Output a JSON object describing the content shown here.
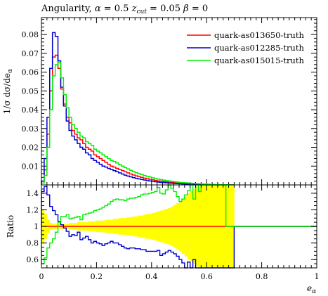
{
  "chart_data": [
    {
      "type": "line",
      "panel": "main",
      "title": "Angularity, α = 0.5 z_cut = 0.05 β = 0",
      "title_parts": {
        "prefix": "Angularity, ",
        "alpha_sym": "α",
        "alpha_eq": " = 0.5 ",
        "z_sym": "z",
        "z_sub": "cut",
        "z_eq": " = 0.05 ",
        "beta_sym": "β",
        "beta_eq": " = 0"
      },
      "ylabel": "1/σ dσ/de_α",
      "ylabel_parts": {
        "main": "1/σ dσ/de",
        "sub": "α"
      },
      "xlim": [
        0,
        1
      ],
      "ylim": [
        0,
        0.089
      ],
      "yticks": [
        "0.01",
        "0.02",
        "0.03",
        "0.04",
        "0.05",
        "0.06",
        "0.07",
        "0.08"
      ],
      "legend_position": "top-right",
      "x": [
        0.0,
        0.01,
        0.02,
        0.03,
        0.04,
        0.05,
        0.06,
        0.07,
        0.08,
        0.09,
        0.1,
        0.11,
        0.12,
        0.13,
        0.14,
        0.15,
        0.16,
        0.17,
        0.18,
        0.19,
        0.2,
        0.21,
        0.22,
        0.23,
        0.24,
        0.25,
        0.26,
        0.27,
        0.28,
        0.29,
        0.3,
        0.31,
        0.32,
        0.33,
        0.34,
        0.35,
        0.36,
        0.37,
        0.38,
        0.39,
        0.4,
        0.41,
        0.42,
        0.43,
        0.44,
        0.45,
        0.46,
        0.47,
        0.48,
        0.49,
        0.5,
        0.51,
        0.52,
        0.53,
        0.54,
        0.55,
        0.56,
        0.57,
        0.58,
        0.59,
        0.6,
        0.61,
        0.62,
        0.63,
        0.64,
        0.65,
        0.66,
        0.67,
        0.68,
        0.69
      ],
      "series": [
        {
          "name": "quark-as013650-truth",
          "color": "#ff0000",
          "values": [
            0.002,
            0.008,
            0.027,
            0.05,
            0.068,
            0.069,
            0.062,
            0.051,
            0.043,
            0.036,
            0.033,
            0.029,
            0.027,
            0.025,
            0.024,
            0.022,
            0.02,
            0.019,
            0.018,
            0.016,
            0.015,
            0.014,
            0.013,
            0.012,
            0.011,
            0.01,
            0.0095,
            0.0088,
            0.0082,
            0.0076,
            0.007,
            0.0064,
            0.0058,
            0.0053,
            0.0048,
            0.0044,
            0.004,
            0.0036,
            0.0033,
            0.003,
            0.0027,
            0.0024,
            0.0021,
            0.002,
            0.0018,
            0.0016,
            0.0014,
            0.0013,
            0.0012,
            0.0011,
            0.001,
            0.0009,
            0.0008,
            0.0007,
            0.0006,
            0.0005,
            0.0004,
            0.0004,
            0.0003,
            0.0003,
            0.0002,
            0.0002,
            0.0001,
            0.0001,
            0.0001,
            0.0001,
            0.0001,
            0.0,
            0.0,
            0.0
          ]
        },
        {
          "name": "quark-as012285-truth",
          "color": "#0000cc",
          "values": [
            0.002,
            0.014,
            0.036,
            0.062,
            0.081,
            0.079,
            0.066,
            0.052,
            0.042,
            0.034,
            0.029,
            0.026,
            0.024,
            0.022,
            0.02,
            0.019,
            0.017,
            0.016,
            0.014,
            0.013,
            0.012,
            0.011,
            0.01,
            0.0095,
            0.0088,
            0.0082,
            0.0076,
            0.007,
            0.0064,
            0.0058,
            0.0052,
            0.0047,
            0.0043,
            0.0039,
            0.0035,
            0.0032,
            0.0029,
            0.0026,
            0.0023,
            0.0021,
            0.0019,
            0.0017,
            0.0015,
            0.0013,
            0.0012,
            0.0011,
            0.001,
            0.0009,
            0.0008,
            0.0007,
            0.0006,
            0.0005,
            0.0004,
            0.0004,
            0.0003,
            0.0003,
            0.0002,
            0.0002,
            0.0001,
            0.0001,
            0.0001,
            0.0001,
            0.0,
            0.0,
            0.0,
            0.0,
            0.0,
            0.0,
            0.0,
            0.0
          ]
        },
        {
          "name": "quark-as015015-truth",
          "color": "#00ee00",
          "values": [
            0.001,
            0.005,
            0.02,
            0.04,
            0.058,
            0.064,
            0.065,
            0.057,
            0.048,
            0.041,
            0.036,
            0.032,
            0.03,
            0.028,
            0.026,
            0.025,
            0.023,
            0.022,
            0.021,
            0.019,
            0.018,
            0.017,
            0.016,
            0.015,
            0.014,
            0.013,
            0.0125,
            0.0117,
            0.0108,
            0.01,
            0.0092,
            0.0085,
            0.0078,
            0.0071,
            0.0065,
            0.006,
            0.0055,
            0.005,
            0.0046,
            0.0042,
            0.0038,
            0.0034,
            0.0031,
            0.0028,
            0.0025,
            0.0023,
            0.0021,
            0.0019,
            0.0017,
            0.0015,
            0.0013,
            0.0012,
            0.0011,
            0.001,
            0.0009,
            0.0008,
            0.0007,
            0.0006,
            0.0005,
            0.0004,
            0.0004,
            0.0003,
            0.0003,
            0.0002,
            0.0002,
            0.0001,
            0.0001,
            0.0001,
            0.0,
            0.0
          ]
        }
      ]
    },
    {
      "type": "line",
      "panel": "ratio",
      "ylabel": "Ratio",
      "xlabel": "e_α",
      "xlabel_parts": {
        "main": "e",
        "sub": "α"
      },
      "xlim": [
        0,
        1
      ],
      "ylim": [
        0.5,
        1.5
      ],
      "xticks": [
        "0",
        "0.2",
        "0.4",
        "0.6",
        "0.8",
        "1"
      ],
      "yticks": [
        "0.6",
        "0.8",
        "1",
        "1.2",
        "1.4"
      ],
      "x": [
        0.0,
        0.01,
        0.02,
        0.03,
        0.04,
        0.05,
        0.06,
        0.07,
        0.08,
        0.09,
        0.1,
        0.11,
        0.12,
        0.13,
        0.14,
        0.15,
        0.16,
        0.17,
        0.18,
        0.19,
        0.2,
        0.21,
        0.22,
        0.23,
        0.24,
        0.25,
        0.26,
        0.27,
        0.28,
        0.29,
        0.3,
        0.31,
        0.32,
        0.33,
        0.34,
        0.35,
        0.36,
        0.37,
        0.38,
        0.39,
        0.4,
        0.41,
        0.42,
        0.43,
        0.44,
        0.45,
        0.46,
        0.47,
        0.48,
        0.49,
        0.5,
        0.51,
        0.52,
        0.53,
        0.54,
        0.55,
        0.56,
        0.57,
        0.58,
        0.59,
        0.6,
        0.61,
        0.62,
        0.63,
        0.64,
        0.65,
        0.66,
        0.67,
        0.68,
        0.69
      ],
      "band_color": "#ffff00",
      "band_halfwidth": [
        0.2,
        0.15,
        0.08,
        0.04,
        0.03,
        0.03,
        0.03,
        0.03,
        0.03,
        0.03,
        0.04,
        0.04,
        0.04,
        0.05,
        0.05,
        0.05,
        0.05,
        0.06,
        0.06,
        0.06,
        0.07,
        0.07,
        0.07,
        0.08,
        0.08,
        0.08,
        0.09,
        0.09,
        0.1,
        0.1,
        0.1,
        0.11,
        0.11,
        0.12,
        0.12,
        0.13,
        0.13,
        0.14,
        0.15,
        0.15,
        0.16,
        0.17,
        0.18,
        0.19,
        0.2,
        0.21,
        0.22,
        0.24,
        0.26,
        0.28,
        0.3,
        0.33,
        0.36,
        0.4,
        0.42,
        0.45,
        0.48,
        0.5,
        0.5,
        0.5,
        0.5,
        0.5,
        0.5,
        0.5,
        0.5,
        0.5,
        0.5,
        0.5,
        0.5,
        0.5
      ],
      "series": [
        {
          "name": "quark-as013650-truth",
          "color": "#ff0000",
          "values": [
            1,
            1,
            1,
            1,
            1,
            1,
            1,
            1,
            1,
            1,
            1,
            1,
            1,
            1,
            1,
            1,
            1,
            1,
            1,
            1,
            1,
            1,
            1,
            1,
            1,
            1,
            1,
            1,
            1,
            1,
            1,
            1,
            1,
            1,
            1,
            1,
            1,
            1,
            1,
            1,
            1,
            1,
            1,
            1,
            1,
            1,
            1,
            1,
            1,
            1,
            1,
            1,
            1,
            1,
            1,
            1,
            1,
            1,
            1,
            1,
            1,
            1,
            1,
            1,
            1,
            1,
            1,
            1,
            1,
            1
          ]
        },
        {
          "name": "quark-as012285-truth",
          "color": "#0000cc",
          "values": [
            1.42,
            1.48,
            1.38,
            1.24,
            1.19,
            1.14,
            1.06,
            1.02,
            0.98,
            0.94,
            0.88,
            0.9,
            0.89,
            0.93,
            0.84,
            0.86,
            0.88,
            0.84,
            0.8,
            0.82,
            0.8,
            0.79,
            0.77,
            0.79,
            0.8,
            0.82,
            0.8,
            0.8,
            0.78,
            0.76,
            0.74,
            0.73,
            0.74,
            0.74,
            0.73,
            0.73,
            0.72,
            0.72,
            0.7,
            0.7,
            0.7,
            0.7,
            0.71,
            0.65,
            0.67,
            0.69,
            0.71,
            0.69,
            0.67,
            0.64,
            0.6,
            0.56,
            0.5,
            0.57,
            0.5,
            0.6,
            0.5,
            0.5,
            0.5,
            0.5,
            0.5,
            0.5,
            0.5,
            0.5,
            0.5,
            0.5,
            0.5,
            0.5,
            0.5,
            0.5
          ]
        },
        {
          "name": "quark-as015015-truth",
          "color": "#00ee00",
          "values": [
            0.55,
            0.62,
            0.74,
            0.8,
            0.85,
            0.93,
            1.05,
            1.12,
            1.12,
            1.14,
            1.09,
            1.1,
            1.11,
            1.12,
            1.08,
            1.14,
            1.15,
            1.16,
            1.17,
            1.19,
            1.2,
            1.21,
            1.23,
            1.25,
            1.27,
            1.3,
            1.32,
            1.33,
            1.32,
            1.32,
            1.31,
            1.33,
            1.34,
            1.34,
            1.35,
            1.36,
            1.38,
            1.39,
            1.39,
            1.4,
            1.41,
            1.42,
            1.47,
            1.4,
            1.39,
            1.44,
            1.5,
            1.46,
            1.42,
            1.36,
            1.3,
            1.33,
            1.38,
            1.43,
            1.5,
            1.33,
            1.5,
            1.42,
            1.5,
            1.5,
            1.5,
            1.5,
            1.5,
            1.5,
            1.5,
            1.5,
            1.5,
            1.0,
            1.0,
            1.0
          ]
        }
      ]
    }
  ]
}
